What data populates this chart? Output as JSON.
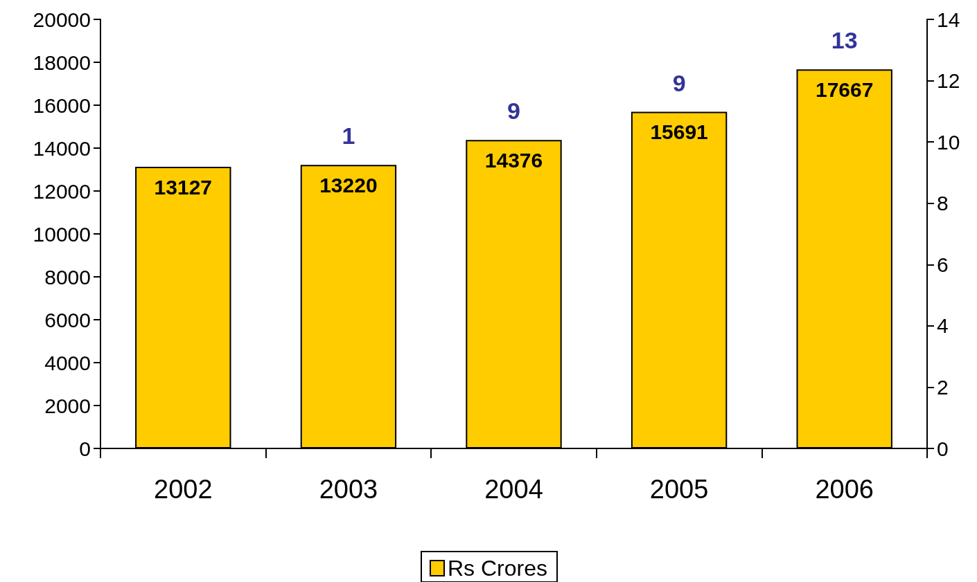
{
  "chart_data": {
    "type": "bar",
    "categories": [
      "2002",
      "2003",
      "2004",
      "2005",
      "2006"
    ],
    "series": [
      {
        "name": "Rs Crores",
        "color": "#ffcc00",
        "values": [
          13127,
          13220,
          14376,
          15691,
          17667
        ]
      }
    ],
    "ylim": [
      0,
      20000
    ],
    "yticks": [
      0,
      2000,
      4000,
      6000,
      8000,
      10000,
      12000,
      14000,
      16000,
      18000,
      20000
    ],
    "y2lim": [
      0,
      14
    ],
    "y2ticks": [
      0,
      2,
      4,
      6,
      8,
      10,
      12,
      14
    ],
    "annotations": [
      "1",
      "9",
      "9",
      "13"
    ],
    "data_labels": true,
    "grid": false,
    "legend": "bottom"
  }
}
